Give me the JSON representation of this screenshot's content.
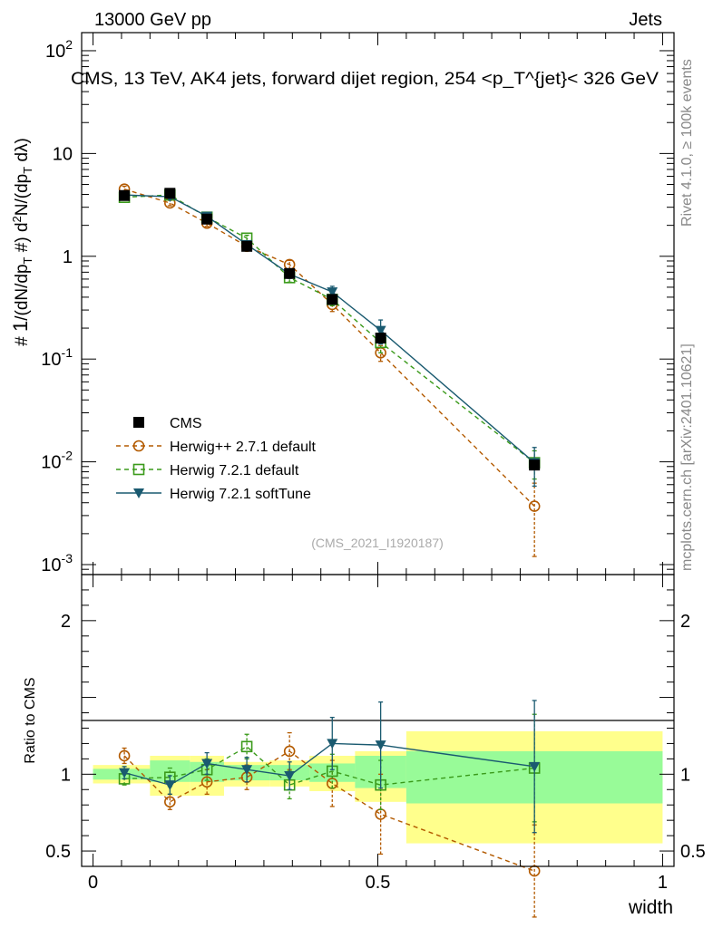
{
  "header": {
    "left": "13000 GeV pp",
    "right": "Jets"
  },
  "side_labels": {
    "rivet": "Rivet 4.1.0, ≥ 100k events",
    "mcplots": "mcplots.cern.ch [arXiv:2401.10621]"
  },
  "chart_data": [
    {
      "panel": "main",
      "type": "scatter",
      "title": "CMS, 13 TeV, AK4 jets, forward dijet region, 254 <p_T^{jet}< 326 GeV",
      "ylabel": "# 1/(dN/dp_T #) d²N/(dp_T dλ)",
      "yscale": "log",
      "ylim": [
        0.0008,
        150
      ],
      "xlim": [
        -0.02,
        1.02
      ],
      "y_ticks": [
        {
          "v": 0.001,
          "label": "10",
          "exp": "-3"
        },
        {
          "v": 0.01,
          "label": "10",
          "exp": "-2"
        },
        {
          "v": 0.1,
          "label": "10",
          "exp": "-1"
        },
        {
          "v": 1,
          "label": "1",
          "exp": ""
        },
        {
          "v": 10,
          "label": "10",
          "exp": ""
        },
        {
          "v": 100,
          "label": "10",
          "exp": "2"
        }
      ],
      "watermark": "(CMS_2021_I1920187)",
      "legend_position": "bottom-left",
      "x": [
        0.055,
        0.135,
        0.2,
        0.27,
        0.345,
        0.42,
        0.505,
        0.775
      ],
      "series": [
        {
          "name": "CMS",
          "marker": "square-filled",
          "color": "#000000",
          "values": [
            3.9,
            4.1,
            2.3,
            1.25,
            0.68,
            0.38,
            0.16,
            0.0093
          ]
        },
        {
          "name": "Herwig++ 2.7.1 default",
          "marker": "circle-open",
          "color": "#b35a00",
          "dash": true,
          "values": [
            4.5,
            3.3,
            2.1,
            1.25,
            0.83,
            0.34,
            0.115,
            0.0037
          ],
          "errors": [
            0.3,
            0.2,
            0.15,
            0.1,
            0.08,
            0.05,
            0.02,
            0.0025
          ]
        },
        {
          "name": "Herwig 7.2.1 default",
          "marker": "square-open",
          "color": "#3a9a1a",
          "dash": true,
          "values": [
            3.75,
            3.95,
            2.4,
            1.5,
            0.62,
            0.38,
            0.145,
            0.0098
          ],
          "errors": [
            0.2,
            0.2,
            0.15,
            0.1,
            0.06,
            0.05,
            0.03,
            0.003
          ]
        },
        {
          "name": "Herwig 7.2.1 softTune",
          "marker": "triangle-down-filled",
          "color": "#1a5a70",
          "dash": false,
          "values": [
            3.95,
            3.8,
            2.45,
            1.3,
            0.67,
            0.45,
            0.19,
            0.0098
          ],
          "errors": [
            0.2,
            0.2,
            0.15,
            0.1,
            0.06,
            0.06,
            0.05,
            0.004
          ]
        }
      ]
    },
    {
      "panel": "ratio",
      "type": "scatter",
      "ylabel": "Ratio to CMS",
      "xlabel": "width",
      "ylim": [
        0.4,
        2.3
      ],
      "xlim": [
        -0.02,
        1.02
      ],
      "y_ticks": [
        0.5,
        1,
        2
      ],
      "y_tick_labels": [
        "0.5",
        "1",
        "2"
      ],
      "x_ticks": [
        0,
        0.5,
        1
      ],
      "x_tick_labels": [
        "0",
        "0.5",
        "1"
      ],
      "bins": [
        {
          "lo": 0.0,
          "hi": 0.1,
          "inner": [
            0.965,
            1.035
          ],
          "outer": [
            0.94,
            1.06
          ]
        },
        {
          "lo": 0.1,
          "hi": 0.17,
          "inner": [
            0.95,
            1.09
          ],
          "outer": [
            0.86,
            1.12
          ]
        },
        {
          "lo": 0.17,
          "hi": 0.23,
          "inner": [
            0.95,
            1.08
          ],
          "outer": [
            0.86,
            1.12
          ]
        },
        {
          "lo": 0.23,
          "hi": 0.31,
          "inner": [
            0.96,
            1.06
          ],
          "outer": [
            0.92,
            1.08
          ]
        },
        {
          "lo": 0.31,
          "hi": 0.38,
          "inner": [
            0.96,
            1.06
          ],
          "outer": [
            0.92,
            1.09
          ]
        },
        {
          "lo": 0.38,
          "hi": 0.46,
          "inner": [
            0.95,
            1.07
          ],
          "outer": [
            0.89,
            1.12
          ]
        },
        {
          "lo": 0.46,
          "hi": 0.55,
          "inner": [
            0.91,
            1.12
          ],
          "outer": [
            0.82,
            1.15
          ]
        },
        {
          "lo": 0.55,
          "hi": 1.0,
          "inner": [
            0.81,
            1.15
          ],
          "outer": [
            0.55,
            1.28
          ]
        }
      ],
      "x": [
        0.055,
        0.135,
        0.2,
        0.27,
        0.345,
        0.42,
        0.505,
        0.775
      ],
      "series": [
        {
          "name": "Herwig++ 2.7.1 default",
          "marker": "circle-open",
          "color": "#b35a00",
          "dash": true,
          "values": [
            1.12,
            0.82,
            0.95,
            0.98,
            1.15,
            0.94,
            0.74,
            0.37
          ],
          "errors": [
            0.05,
            0.05,
            0.08,
            0.08,
            0.12,
            0.15,
            0.26,
            0.3
          ]
        },
        {
          "name": "Herwig 7.2.1 default",
          "marker": "square-open",
          "color": "#3a9a1a",
          "dash": true,
          "values": [
            0.97,
            0.98,
            1.03,
            1.18,
            0.93,
            1.02,
            0.93,
            1.04
          ],
          "errors": [
            0.04,
            0.06,
            0.07,
            0.08,
            0.09,
            0.11,
            0.16,
            0.35
          ]
        },
        {
          "name": "Herwig 7.2.1 softTune",
          "marker": "triangle-down-filled",
          "color": "#1a5a70",
          "dash": false,
          "values": [
            1.01,
            0.93,
            1.07,
            1.03,
            0.99,
            1.2,
            1.19,
            1.05
          ],
          "errors": [
            0.04,
            0.06,
            0.07,
            0.08,
            0.09,
            0.17,
            0.28,
            0.43
          ]
        }
      ]
    }
  ]
}
